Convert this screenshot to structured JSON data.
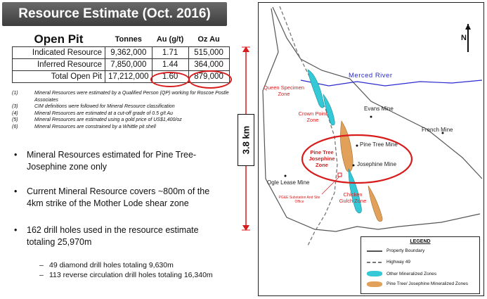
{
  "title": "Resource Estimate (Oct. 2016)",
  "table": {
    "label_header": "Open Pit",
    "headers": [
      "Tonnes",
      "Au (g/t)",
      "Oz Au"
    ],
    "rows": [
      {
        "label": "Indicated Resource",
        "tonnes": "9,362,000",
        "grade": "1.71",
        "oz": "515,000"
      },
      {
        "label": "Inferred Resource",
        "tonnes": "7,850,000",
        "grade": "1.44",
        "oz": "364,000"
      },
      {
        "label": "Total Open Pit",
        "tonnes": "17,212,000",
        "grade": "1.60",
        "oz": "879,000"
      }
    ]
  },
  "notes": [
    {
      "n": "(1)",
      "text": "Mineral Resources were estimated by a Qualified Person (QP) working for Roscoe Postle Associates"
    },
    {
      "n": "(3)",
      "text": "CIM definitions were followed for Mineral Resource classification"
    },
    {
      "n": "(4)",
      "text": "Mineral Resources are estimated at a cut-off grade of 0.5 g/t Au"
    },
    {
      "n": "(5)",
      "text": "Mineral Resources are estimated using a gold price of US$1,400/oz"
    },
    {
      "n": "(6)",
      "text": "Mineral Resources are constrained by a Whittle pit shell"
    }
  ],
  "bullets": [
    "Mineral Resources estimated for Pine Tree-Josephine zone only",
    "Current Mineral Resource covers ~800m of the 4km strike of the Mother Lode shear zone",
    "162 drill holes used in the resource estimate totaling 25,970m"
  ],
  "sub_bullets": [
    "49 diamond drill holes totaling 9,630m",
    "113 reverse circulation drill holes totaling 16,340m"
  ],
  "scale_label": "3.8 km",
  "map": {
    "north_label": "N",
    "river": "Merced River",
    "labels": {
      "queen_specimen": "Queen Specimen Zone",
      "crown_point": "Crown Point Zone",
      "evans": "Evans Mine",
      "french": "French Mine",
      "pine_tree_mine": "Pine Tree Mine",
      "pine_tree_zone": "Pine Tree Josephine Zone",
      "josephine": "Josephine Mine",
      "ogle": "Ogle Lease Mine",
      "chicken": "Chicken Gulch Zone",
      "pge": "PG&E Substation And Site Office"
    },
    "legend": {
      "title": "LEGEND",
      "items": [
        "Property Boundary",
        "Highway 49",
        "Other Mineralized Zones",
        "Pine Tree/ Josephine Mineralized Zones"
      ]
    },
    "colors": {
      "highlight": "#d81b1b",
      "other_zone": "#35c9d8",
      "pine_zone": "#e2a15a",
      "river": "#2a2ad0"
    }
  }
}
